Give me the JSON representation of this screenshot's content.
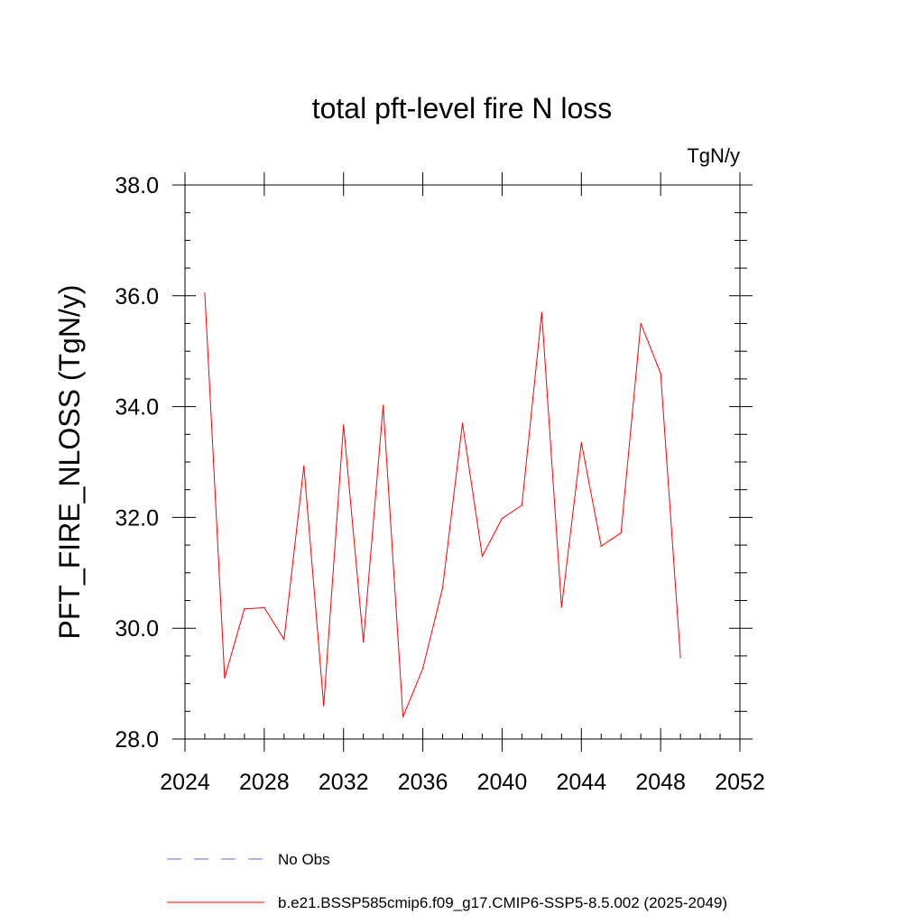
{
  "chart_data": {
    "type": "line",
    "title": "total pft-level fire N loss",
    "units_label": "TgN/y",
    "ylabel": "PFT_FIRE_NLOSS  (TgN/y)",
    "xlabel": "",
    "xlim": [
      2024,
      2052
    ],
    "ylim": [
      28.0,
      38.0
    ],
    "x_ticks": [
      2024,
      2028,
      2032,
      2036,
      2040,
      2044,
      2048,
      2052
    ],
    "y_ticks": [
      28.0,
      30.0,
      32.0,
      34.0,
      36.0,
      38.0
    ],
    "x_tick_labels": [
      "2024",
      "2028",
      "2032",
      "2036",
      "2040",
      "2044",
      "2048",
      "2052"
    ],
    "y_tick_labels": [
      "28.0",
      "30.0",
      "32.0",
      "34.0",
      "36.0",
      "38.0"
    ],
    "grid": false,
    "legend_position": "bottom",
    "series": [
      {
        "name": "b.e21.BSSP585cmip6.f09_g17.CMIP6-SSP5-8.5.002 (2025-2049)",
        "color": "#ff0000",
        "style": "solid",
        "x": [
          2025,
          2026,
          2027,
          2028,
          2029,
          2030,
          2031,
          2032,
          2033,
          2034,
          2035,
          2036,
          2037,
          2038,
          2039,
          2040,
          2041,
          2042,
          2043,
          2044,
          2045,
          2046,
          2047,
          2048,
          2049
        ],
        "y": [
          36.05,
          29.1,
          30.35,
          30.37,
          29.8,
          32.93,
          28.6,
          33.67,
          29.75,
          34.02,
          28.4,
          29.27,
          30.73,
          33.7,
          31.3,
          31.98,
          32.22,
          35.7,
          30.38,
          33.35,
          31.48,
          31.72,
          35.5,
          34.6,
          29.47
        ]
      }
    ],
    "legend": [
      {
        "label": "No Obs",
        "color": "#6a6ad8",
        "style": "dashed"
      },
      {
        "label": "b.e21.BSSP585cmip6.f09_g17.CMIP6-SSP5-8.5.002 (2025-2049)",
        "color": "#ff0000",
        "style": "solid"
      }
    ]
  }
}
